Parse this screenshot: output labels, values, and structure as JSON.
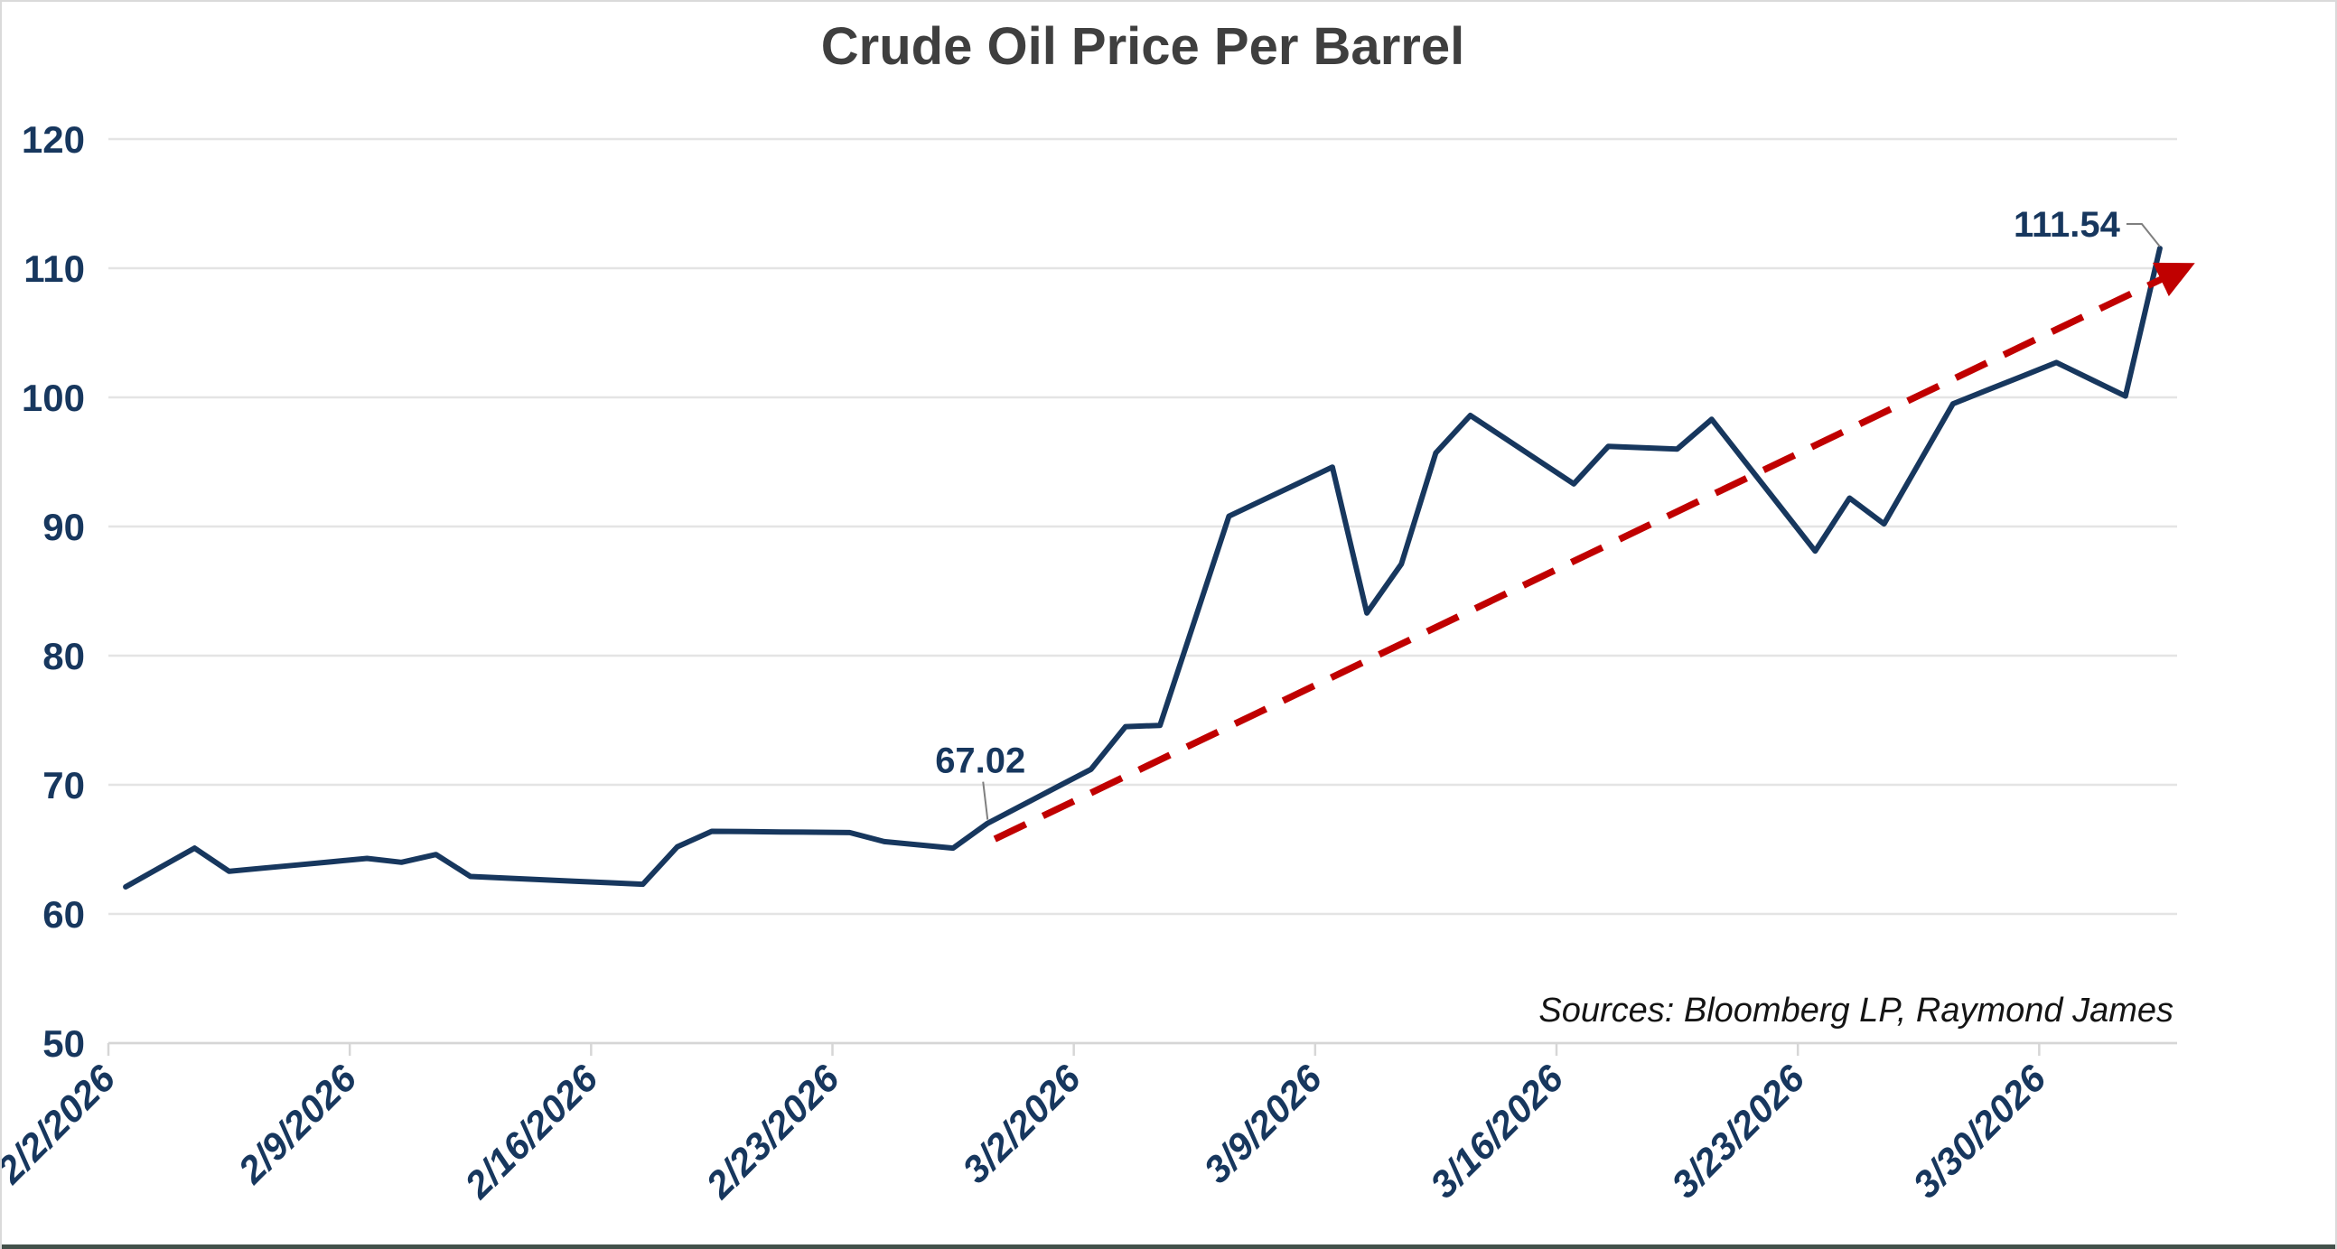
{
  "title": "Crude Oil Price Per Barrel",
  "source_note": "Sources: Bloomberg LP, Raymond James",
  "colors": {
    "price_line": "#17375E",
    "trend_line": "#C00000",
    "axis_text": "#17375E",
    "title_text": "#3F3F3F",
    "gridline": "#E4E4E4",
    "frame_border": "#DADADA",
    "bottom_strip": "#42514a",
    "leader": "#7F7F7F"
  },
  "chart_data": {
    "type": "line",
    "title": "Crude Oil Price Per Barrel",
    "xlabel": "",
    "ylabel": "",
    "ylim": [
      50,
      120
    ],
    "ytick_step": 10,
    "yticks": [
      "50",
      "60",
      "70",
      "80",
      "90",
      "100",
      "110",
      "120"
    ],
    "grid": "horizontal",
    "legend": "none",
    "xticks": [
      "2/2/2026",
      "2/9/2026",
      "2/16/2026",
      "2/23/2026",
      "3/2/2026",
      "3/9/2026",
      "3/16/2026",
      "3/23/2026",
      "3/30/2026"
    ],
    "tick_interval_days": 7,
    "x": [
      "2/2/2026",
      "2/3/2026",
      "2/4/2026",
      "2/5/2026",
      "2/6/2026",
      "2/7/2026",
      "2/8/2026",
      "2/9/2026",
      "2/10/2026",
      "2/11/2026",
      "2/12/2026",
      "2/13/2026",
      "2/14/2026",
      "2/15/2026",
      "2/16/2026",
      "2/17/2026",
      "2/18/2026",
      "2/19/2026",
      "2/20/2026",
      "2/21/2026",
      "2/22/2026",
      "2/23/2026",
      "2/24/2026",
      "2/25/2026",
      "2/26/2026",
      "2/27/2026",
      "2/28/2026",
      "3/1/2026",
      "3/2/2026",
      "3/3/2026",
      "3/4/2026",
      "3/5/2026",
      "3/6/2026",
      "3/7/2026",
      "3/8/2026",
      "3/9/2026",
      "3/10/2026",
      "3/11/2026",
      "3/12/2026",
      "3/13/2026",
      "3/14/2026",
      "3/15/2026",
      "3/16/2026",
      "3/17/2026",
      "3/18/2026",
      "3/19/2026",
      "3/20/2026",
      "3/21/2026",
      "3/22/2026",
      "3/23/2026",
      "3/24/2026",
      "3/25/2026",
      "3/26/2026",
      "3/27/2026",
      "3/28/2026",
      "3/29/2026",
      "3/30/2026",
      "3/31/2026",
      "4/1/2026",
      "4/2/2026"
    ],
    "series": [
      {
        "name": "Crude Oil Price Per Barrel",
        "color": "#17375E",
        "values": [
          62.1,
          63.6,
          65.1,
          63.3,
          63.55,
          63.8,
          64.05,
          64.3,
          64.0,
          64.6,
          62.9,
          62.78,
          62.66,
          62.54,
          62.42,
          62.3,
          65.2,
          66.4,
          66.38,
          66.35,
          66.33,
          66.3,
          65.6,
          65.35,
          65.1,
          67.02,
          68.41,
          69.81,
          71.2,
          74.5,
          74.6,
          82.7,
          90.8,
          92.07,
          93.33,
          94.6,
          83.3,
          87.1,
          95.7,
          98.6,
          96.83,
          95.07,
          93.3,
          96.2,
          96.1,
          96.0,
          98.3,
          94.9,
          91.5,
          88.1,
          92.2,
          90.2,
          94.85,
          99.5,
          100.57,
          101.63,
          102.7,
          101.4,
          100.1,
          111.54
        ]
      }
    ],
    "trendline": {
      "style": "dashed",
      "color": "#C00000",
      "arrow_end": true,
      "start_date": "2/27/2026",
      "start_value": 65.8,
      "end_date": "4/2/2026",
      "end_value": 109.4
    },
    "annotations": [
      {
        "label": "67.02",
        "date": "2/27/2026",
        "value": 67.02,
        "placement": "above-left"
      },
      {
        "label": "111.54",
        "date": "4/2/2026",
        "value": 111.54,
        "placement": "left"
      }
    ]
  }
}
